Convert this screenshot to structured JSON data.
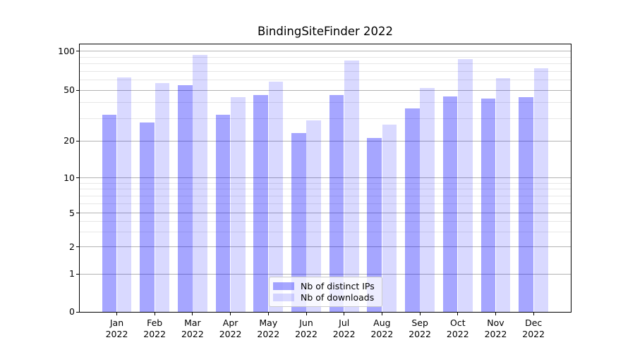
{
  "title": "BindingSiteFinder 2022",
  "chart_data": {
    "type": "bar",
    "title": "BindingSiteFinder 2022",
    "categories": [
      "Jan 2022",
      "Feb 2022",
      "Mar 2022",
      "Apr 2022",
      "May 2022",
      "Jun 2022",
      "Jul 2022",
      "Aug 2022",
      "Sep 2022",
      "Oct 2022",
      "Nov 2022",
      "Dec 2022"
    ],
    "series": [
      {
        "name": "Nb of distinct IPs",
        "color": "rgba(0,0,255,0.35)",
        "values": [
          32,
          28,
          55,
          32,
          46,
          23,
          46,
          21,
          36,
          45,
          43,
          44
        ]
      },
      {
        "name": "Nb of downloads",
        "color": "rgba(0,0,255,0.15)",
        "values": [
          63,
          57,
          94,
          44,
          58,
          29,
          85,
          27,
          52,
          87,
          62,
          74
        ]
      }
    ],
    "xlabel": "",
    "ylabel": "",
    "yscale": "symlog",
    "yticks": [
      0,
      1,
      2,
      5,
      10,
      20,
      50,
      100
    ],
    "yminorticks": [
      3,
      4,
      6,
      7,
      8,
      9,
      30,
      40,
      60,
      70,
      80,
      90
    ],
    "ylim": [
      0,
      112
    ],
    "grid": "both",
    "legend_position": "lower center"
  },
  "colors": {
    "grid_major": "#b3b3b3",
    "grid_minor": "#e7e7e7",
    "spine": "#000000",
    "text": "#000000",
    "legend_bg": "rgba(255,255,255,0.8)",
    "legend_border": "#cccccc"
  }
}
